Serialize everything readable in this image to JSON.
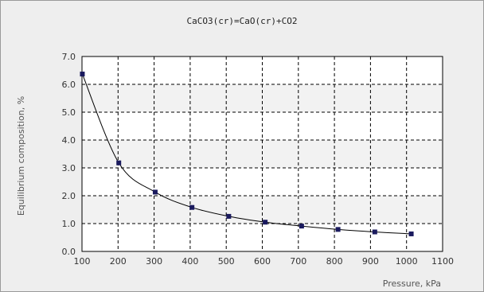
{
  "chart_data": {
    "type": "line",
    "title": "CaCO3(cr)=CaO(cr)+CO2",
    "xlabel": "Pressure, kPa",
    "ylabel": "Equilibrium composition, %",
    "xlim": [
      100,
      1100
    ],
    "ylim": [
      0,
      7
    ],
    "x_ticks": [
      "100",
      "200",
      "300",
      "400",
      "500",
      "600",
      "700",
      "800",
      "900",
      "1000",
      "1100"
    ],
    "y_ticks": [
      "0.0",
      "1.0",
      "2.0",
      "3.0",
      "4.0",
      "5.0",
      "6.0",
      "7.0"
    ],
    "grid": true,
    "colors": {
      "line": "#000000",
      "marker": "#1a1a5e",
      "band": "#f2f2f2"
    },
    "series": [
      {
        "x": [
          101,
          202,
          303,
          405,
          507,
          608,
          709,
          810,
          912,
          1013
        ],
        "y": [
          6.37,
          3.18,
          2.13,
          1.58,
          1.26,
          1.05,
          0.91,
          0.79,
          0.7,
          0.63
        ]
      }
    ]
  }
}
